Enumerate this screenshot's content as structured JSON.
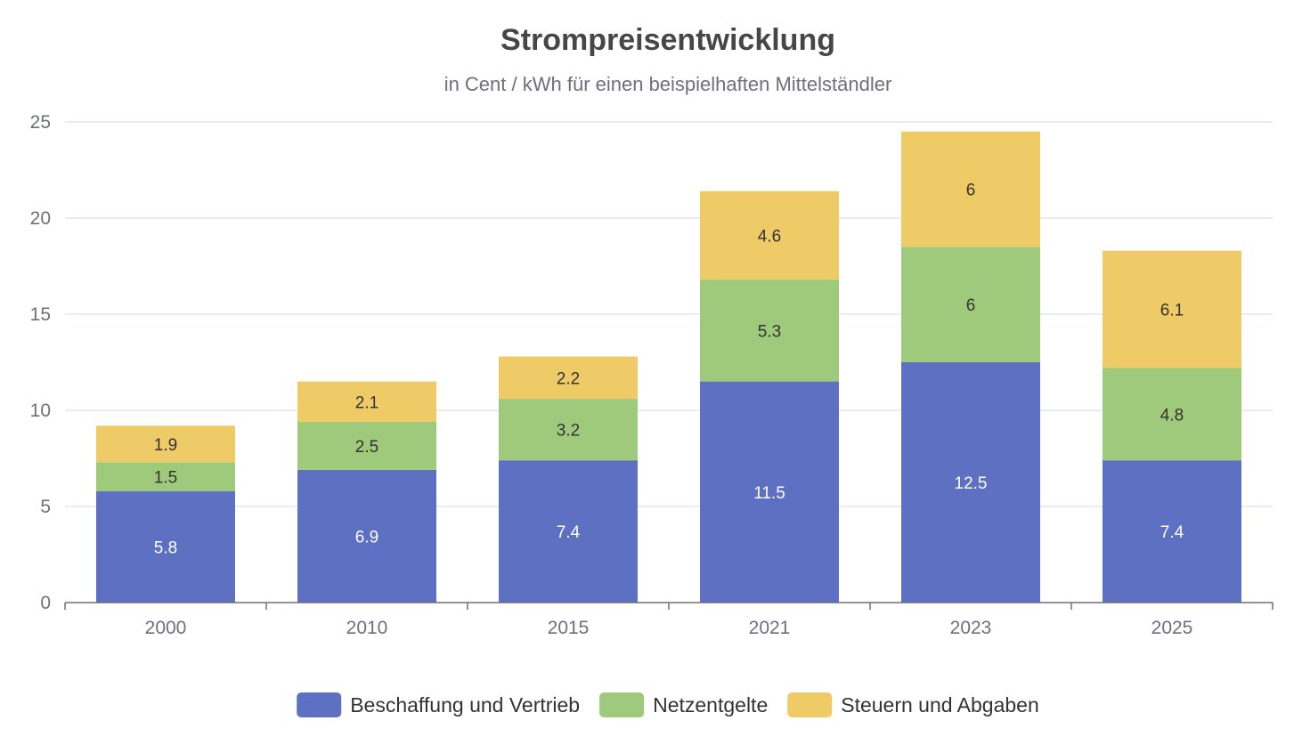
{
  "chart_data": {
    "type": "bar",
    "stacked": true,
    "title": "Strompreisentwicklung",
    "subtitle": "in Cent / kWh für einen beispielhaften Mittelständler",
    "categories": [
      "2000",
      "2010",
      "2015",
      "2021",
      "2023",
      "2025"
    ],
    "series": [
      {
        "name": "Beschaffung und Vertrieb",
        "values": [
          5.8,
          6.9,
          7.4,
          11.5,
          12.5,
          7.4
        ],
        "color": "#5e70c2",
        "label_color": "#ffffff"
      },
      {
        "name": "Netzentgelte",
        "values": [
          1.5,
          2.5,
          3.2,
          5.3,
          6,
          4.8
        ],
        "color": "#9fca7b",
        "label_color": "#333333"
      },
      {
        "name": "Steuern und Abgaben",
        "values": [
          1.9,
          2.1,
          2.2,
          4.6,
          6,
          6.1
        ],
        "color": "#eecb66",
        "label_color": "#333333"
      }
    ],
    "ylim": [
      0,
      25
    ],
    "yticks": [
      0,
      5,
      10,
      15,
      20,
      25
    ],
    "grid": true,
    "legend_position": "bottom"
  }
}
